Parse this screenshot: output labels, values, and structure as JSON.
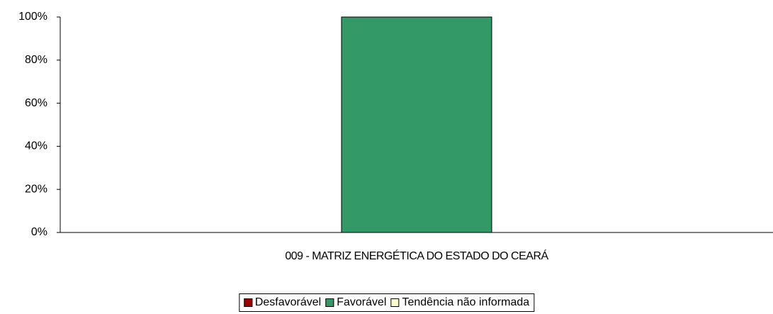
{
  "chart_data": {
    "type": "stacked_bar",
    "categories": [
      "009 - MATRIZ ENERGÉTICA DO ESTADO DO CEARÁ"
    ],
    "series": [
      {
        "name": "Desfavorável",
        "color": "#990000",
        "values": [
          0
        ]
      },
      {
        "name": "Favorável",
        "color": "#339966",
        "values": [
          100
        ]
      },
      {
        "name": "Tendência não informada",
        "color": "#ffffcc",
        "values": [
          0
        ]
      }
    ],
    "ylim": [
      0,
      100
    ],
    "yticks": [
      {
        "value": 0,
        "label": "0%"
      },
      {
        "value": 20,
        "label": "20%"
      },
      {
        "value": 40,
        "label": "40%"
      },
      {
        "value": 60,
        "label": "60%"
      },
      {
        "value": 80,
        "label": "80%"
      },
      {
        "value": 100,
        "label": "100%"
      }
    ],
    "legend": "bottom"
  }
}
